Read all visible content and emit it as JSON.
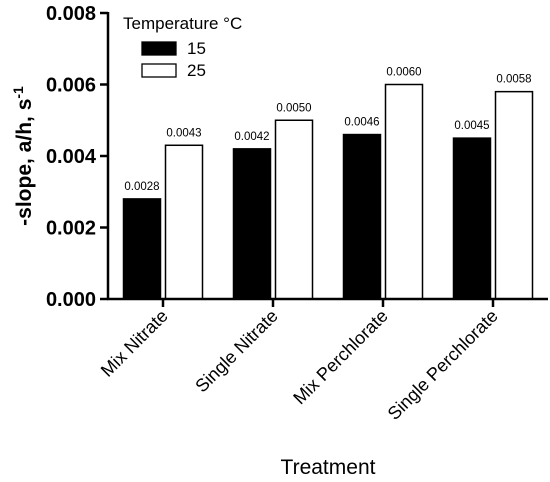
{
  "chart_data": {
    "type": "bar",
    "categories": [
      "Mix Nitrate",
      "Single Nitrate",
      "Mix Perchlorate",
      "Single Perchlorate"
    ],
    "series": [
      {
        "name": "15",
        "color": "#000000",
        "values": [
          0.0028,
          0.0042,
          0.0046,
          0.0045
        ],
        "labels": [
          "0.0028",
          "0.0042",
          "0.0046",
          "0.0045"
        ]
      },
      {
        "name": "25",
        "color": "#ffffff",
        "values": [
          0.0043,
          0.005,
          0.006,
          0.0058
        ],
        "labels": [
          "0.0043",
          "0.0050",
          "0.0060",
          "0.0058"
        ]
      }
    ],
    "xlabel": "Treatment",
    "ylabel": "-slope, a/h, s",
    "ylabel_superscript": "-1",
    "ylim": [
      0,
      0.008
    ],
    "yticks": [
      "0.000",
      "0.002",
      "0.004",
      "0.006",
      "0.008"
    ],
    "legend": {
      "title": "Temperature °C",
      "position": "top-left"
    },
    "grid": false
  }
}
